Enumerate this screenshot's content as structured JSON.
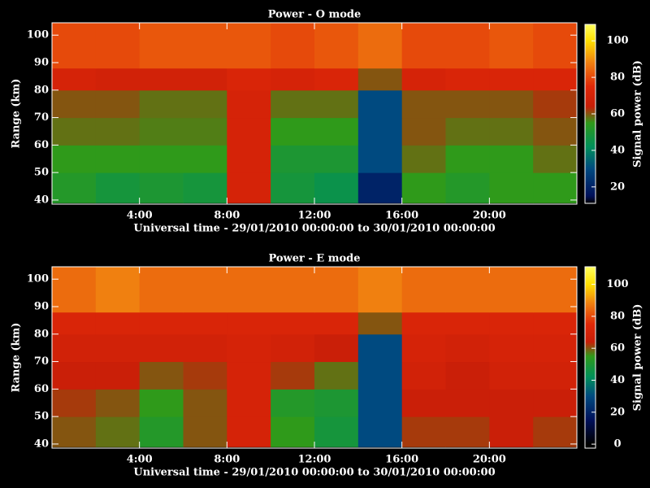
{
  "chart_data": [
    {
      "type": "heatmap",
      "title": "Power - O mode",
      "xlabel": "Universal time - 29/01/2010 00:00:00 to 30/01/2010 00:00:00",
      "ylabel": "Range (km)",
      "zlabel": "Signal power (dB)",
      "xlim": [
        0,
        24
      ],
      "xticks": [
        {
          "value": 4,
          "label": "4:00"
        },
        {
          "value": 8,
          "label": "8:00"
        },
        {
          "value": 12,
          "label": "12:00"
        },
        {
          "value": 16,
          "label": "16:00"
        },
        {
          "value": 20,
          "label": "20:00"
        }
      ],
      "ylim": [
        38.5,
        104.5
      ],
      "yticks": [
        40,
        50,
        60,
        70,
        80,
        90,
        100
      ],
      "zlim": [
        11,
        109
      ],
      "zticks": [
        20,
        40,
        60,
        80,
        100
      ],
      "x": [
        0,
        2,
        4,
        6,
        8,
        10,
        12,
        14,
        16,
        18,
        20,
        22,
        24
      ],
      "y": [
        39,
        50,
        60,
        70,
        80,
        88,
        105
      ],
      "values": [
        [
          52,
          48,
          50,
          48,
          70,
          48,
          45,
          20,
          55,
          52,
          55,
          55
        ],
        [
          55,
          55,
          55,
          55,
          70,
          50,
          50,
          30,
          58,
          55,
          55,
          58
        ],
        [
          58,
          58,
          57,
          57,
          70,
          55,
          55,
          30,
          60,
          58,
          58,
          60
        ],
        [
          60,
          60,
          58,
          58,
          70,
          58,
          58,
          30,
          60,
          60,
          60,
          62
        ],
        [
          70,
          68,
          68,
          68,
          72,
          70,
          72,
          60,
          70,
          72,
          72,
          72
        ],
        [
          80,
          80,
          82,
          82,
          82,
          80,
          82,
          85,
          80,
          80,
          82,
          80
        ]
      ]
    },
    {
      "type": "heatmap",
      "title": "Power - E mode",
      "xlabel": "Universal time - 29/01/2010 00:00:00 to 30/01/2010 00:00:00",
      "ylabel": "Range (km)",
      "zlabel": "Signal power (dB)",
      "xlim": [
        0,
        24
      ],
      "xticks": [
        {
          "value": 4,
          "label": "4:00"
        },
        {
          "value": 8,
          "label": "8:00"
        },
        {
          "value": 12,
          "label": "12:00"
        },
        {
          "value": 16,
          "label": "16:00"
        },
        {
          "value": 20,
          "label": "20:00"
        }
      ],
      "ylim": [
        38.5,
        104.5
      ],
      "yticks": [
        40,
        50,
        60,
        70,
        80,
        90,
        100
      ],
      "zlim": [
        -2.5,
        111
      ],
      "zticks": [
        0,
        20,
        40,
        60,
        80,
        100
      ],
      "x": [
        0,
        2,
        4,
        6,
        8,
        10,
        12,
        14,
        16,
        18,
        20,
        22,
        24
      ],
      "y": [
        39,
        50,
        60,
        70,
        80,
        88,
        105
      ],
      "values": [
        [
          60,
          58,
          52,
          60,
          70,
          55,
          48,
          30,
          62,
          62,
          65,
          62
        ],
        [
          62,
          60,
          55,
          60,
          70,
          52,
          50,
          30,
          65,
          65,
          65,
          65
        ],
        [
          65,
          65,
          60,
          62,
          70,
          62,
          58,
          30,
          68,
          65,
          68,
          68
        ],
        [
          68,
          68,
          68,
          68,
          70,
          68,
          65,
          30,
          70,
          68,
          70,
          70
        ],
        [
          72,
          72,
          72,
          72,
          72,
          72,
          72,
          60,
          72,
          72,
          72,
          72
        ],
        [
          85,
          88,
          85,
          85,
          85,
          85,
          85,
          88,
          85,
          85,
          85,
          85
        ]
      ]
    }
  ],
  "colorscale": [
    {
      "value": 0,
      "color": "#000000"
    },
    {
      "value": 15,
      "color": "#00105a"
    },
    {
      "value": 30,
      "color": "#004a80"
    },
    {
      "value": 42,
      "color": "#00905a"
    },
    {
      "value": 55,
      "color": "#2f9a1a"
    },
    {
      "value": 64,
      "color": "#c81e08"
    },
    {
      "value": 75,
      "color": "#e02808"
    },
    {
      "value": 88,
      "color": "#f08010"
    },
    {
      "value": 100,
      "color": "#ffe000"
    },
    {
      "value": 111,
      "color": "#ffff60"
    }
  ]
}
